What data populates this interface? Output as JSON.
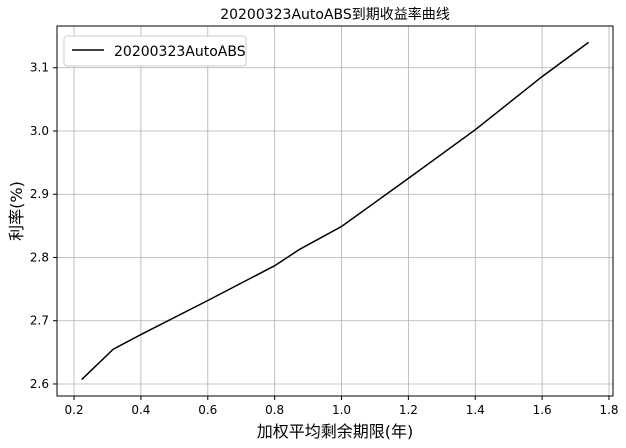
{
  "chart_data": {
    "type": "line",
    "title": "20200323AutoABS到期收益率曲线",
    "xlabel": "加权平均剩余期限(年)",
    "ylabel": "利率(%)",
    "xlim": [
      0.149,
      1.812
    ],
    "ylim": [
      2.581,
      3.166
    ],
    "xticks": [
      0.2,
      0.4,
      0.6,
      0.8,
      1.0,
      1.2,
      1.4,
      1.6,
      1.8
    ],
    "xtick_labels": [
      "0.2",
      "0.4",
      "0.6",
      "0.8",
      "1.0",
      "1.2",
      "1.4",
      "1.6",
      "1.8"
    ],
    "yticks": [
      2.6,
      2.7,
      2.8,
      2.9,
      3.0,
      3.1
    ],
    "ytick_labels": [
      "2.6",
      "2.7",
      "2.8",
      "2.9",
      "3.0",
      "3.1"
    ],
    "grid": true,
    "legend_placement": "top-left",
    "series": [
      {
        "name": "20200323AutoABS",
        "color": "#000000",
        "x": [
          0.223,
          0.317,
          0.4,
          0.6,
          0.8,
          0.875,
          1.0,
          1.2,
          1.4,
          1.6,
          1.739
        ],
        "y": [
          2.607,
          2.655,
          2.678,
          2.732,
          2.787,
          2.813,
          2.849,
          2.925,
          3.002,
          3.086,
          3.14
        ]
      }
    ]
  }
}
